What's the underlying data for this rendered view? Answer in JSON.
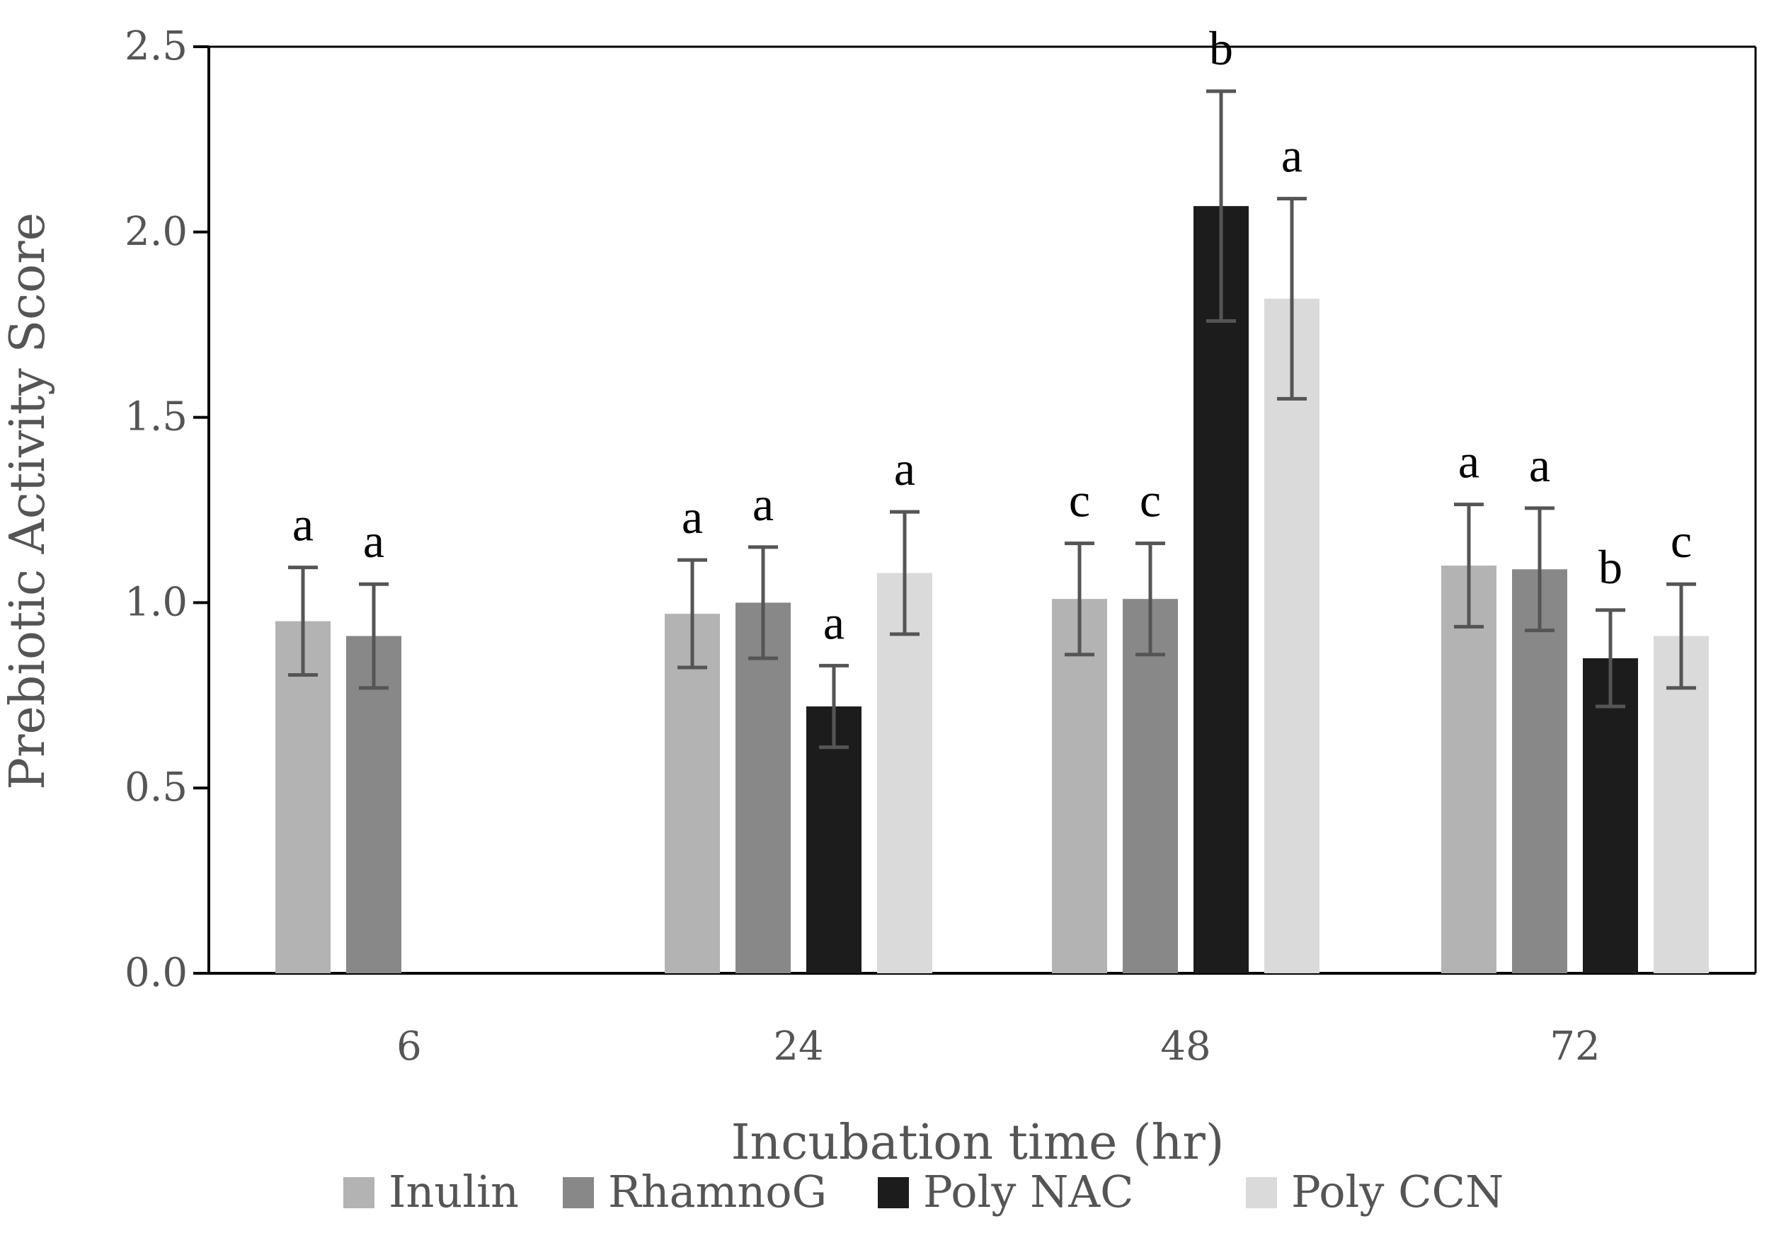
{
  "chart_data": {
    "type": "bar",
    "title": "",
    "xlabel": "Incubation time (hr)",
    "ylabel": "Prebiotic Activity Score",
    "ylim": [
      0,
      2.5
    ],
    "yticks": [
      "0.0",
      "0.5",
      "1.0",
      "1.5",
      "2.0",
      "2.5"
    ],
    "ytick_values": [
      0,
      0.5,
      1.0,
      1.5,
      2.0,
      2.5
    ],
    "categories": [
      "6",
      "24",
      "48",
      "72"
    ],
    "legend_position": "bottom",
    "series": [
      {
        "name": "Inulin",
        "color": "#b3b3b3",
        "values": [
          0.95,
          0.97,
          1.01,
          1.1
        ],
        "errors": [
          0.145,
          0.145,
          0.15,
          0.165
        ],
        "labels": [
          "a",
          "a",
          "c",
          "a"
        ]
      },
      {
        "name": "RhamnoG",
        "color": "#888888",
        "values": [
          0.91,
          1.0,
          1.01,
          1.09
        ],
        "errors": [
          0.14,
          0.15,
          0.15,
          0.165
        ],
        "labels": [
          "a",
          "a",
          "c",
          "a"
        ]
      },
      {
        "name": "Poly NAC",
        "color": "#1c1c1c",
        "values": [
          null,
          0.72,
          2.07,
          0.85
        ],
        "errors": [
          null,
          0.11,
          0.31,
          0.13
        ],
        "labels": [
          null,
          "a",
          "b",
          "b"
        ]
      },
      {
        "name": "Poly CCN",
        "color": "#dadada",
        "values": [
          null,
          1.08,
          1.82,
          0.91
        ],
        "errors": [
          null,
          0.165,
          0.27,
          0.14
        ],
        "labels": [
          null,
          "a",
          "a",
          "c"
        ]
      }
    ]
  }
}
